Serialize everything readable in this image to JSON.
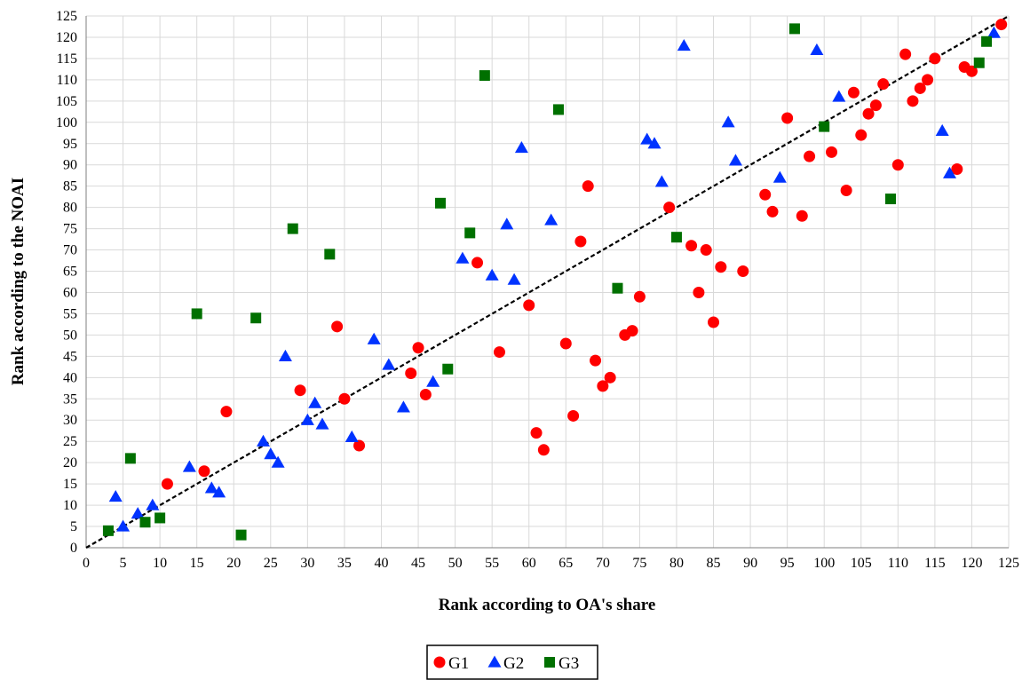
{
  "chart_data": {
    "type": "scatter",
    "title": "",
    "xlabel": "Rank according to OA's share",
    "ylabel": "Rank according to the NOAI",
    "xlim": [
      0,
      125
    ],
    "ylim": [
      0,
      125
    ],
    "xticks": [
      0,
      5,
      10,
      15,
      20,
      25,
      30,
      35,
      40,
      45,
      50,
      55,
      60,
      65,
      70,
      75,
      80,
      85,
      90,
      95,
      100,
      105,
      110,
      115,
      120,
      125
    ],
    "yticks": [
      0,
      5,
      10,
      15,
      20,
      25,
      30,
      35,
      40,
      45,
      50,
      55,
      60,
      65,
      70,
      75,
      80,
      85,
      90,
      95,
      100,
      105,
      110,
      115,
      120,
      125
    ],
    "grid": true,
    "legend_position": "bottom-center",
    "reference_line": {
      "style": "dashed",
      "from": [
        0,
        0
      ],
      "to": [
        125,
        125
      ],
      "color": "#000000"
    },
    "series": [
      {
        "name": "G1",
        "marker": "circle",
        "color": "#ff0000",
        "points": [
          [
            11,
            15
          ],
          [
            16,
            18
          ],
          [
            19,
            32
          ],
          [
            29,
            37
          ],
          [
            34,
            52
          ],
          [
            35,
            35
          ],
          [
            37,
            24
          ],
          [
            44,
            41
          ],
          [
            45,
            47
          ],
          [
            46,
            36
          ],
          [
            53,
            67
          ],
          [
            56,
            46
          ],
          [
            60,
            57
          ],
          [
            61,
            27
          ],
          [
            62,
            23
          ],
          [
            65,
            48
          ],
          [
            66,
            31
          ],
          [
            67,
            72
          ],
          [
            68,
            85
          ],
          [
            69,
            44
          ],
          [
            70,
            38
          ],
          [
            71,
            40
          ],
          [
            73,
            50
          ],
          [
            74,
            51
          ],
          [
            75,
            59
          ],
          [
            79,
            80
          ],
          [
            82,
            71
          ],
          [
            83,
            60
          ],
          [
            84,
            70
          ],
          [
            85,
            53
          ],
          [
            86,
            66
          ],
          [
            89,
            65
          ],
          [
            92,
            83
          ],
          [
            93,
            79
          ],
          [
            95,
            101
          ],
          [
            97,
            78
          ],
          [
            98,
            92
          ],
          [
            101,
            93
          ],
          [
            103,
            84
          ],
          [
            104,
            107
          ],
          [
            105,
            97
          ],
          [
            106,
            102
          ],
          [
            107,
            104
          ],
          [
            108,
            109
          ],
          [
            110,
            90
          ],
          [
            111,
            116
          ],
          [
            112,
            105
          ],
          [
            113,
            108
          ],
          [
            114,
            110
          ],
          [
            115,
            115
          ],
          [
            118,
            89
          ],
          [
            119,
            113
          ],
          [
            120,
            112
          ],
          [
            124,
            123
          ]
        ]
      },
      {
        "name": "G2",
        "marker": "triangle",
        "color": "#0033ff",
        "points": [
          [
            4,
            12
          ],
          [
            5,
            5
          ],
          [
            7,
            8
          ],
          [
            9,
            10
          ],
          [
            14,
            19
          ],
          [
            17,
            14
          ],
          [
            18,
            13
          ],
          [
            24,
            25
          ],
          [
            25,
            22
          ],
          [
            26,
            20
          ],
          [
            27,
            45
          ],
          [
            30,
            30
          ],
          [
            31,
            34
          ],
          [
            32,
            29
          ],
          [
            36,
            26
          ],
          [
            39,
            49
          ],
          [
            41,
            43
          ],
          [
            43,
            33
          ],
          [
            47,
            39
          ],
          [
            51,
            68
          ],
          [
            55,
            64
          ],
          [
            57,
            76
          ],
          [
            58,
            63
          ],
          [
            59,
            94
          ],
          [
            63,
            77
          ],
          [
            76,
            96
          ],
          [
            77,
            95
          ],
          [
            78,
            86
          ],
          [
            81,
            118
          ],
          [
            87,
            100
          ],
          [
            88,
            91
          ],
          [
            94,
            87
          ],
          [
            99,
            117
          ],
          [
            102,
            106
          ],
          [
            116,
            98
          ],
          [
            117,
            88
          ],
          [
            123,
            121
          ]
        ]
      },
      {
        "name": "G3",
        "marker": "square",
        "color": "#007000",
        "points": [
          [
            3,
            4
          ],
          [
            6,
            21
          ],
          [
            8,
            6
          ],
          [
            10,
            7
          ],
          [
            15,
            55
          ],
          [
            21,
            3
          ],
          [
            23,
            54
          ],
          [
            28,
            75
          ],
          [
            33,
            69
          ],
          [
            48,
            81
          ],
          [
            49,
            42
          ],
          [
            52,
            74
          ],
          [
            54,
            111
          ],
          [
            64,
            103
          ],
          [
            72,
            61
          ],
          [
            80,
            73
          ],
          [
            96,
            122
          ],
          [
            100,
            99
          ],
          [
            109,
            82
          ],
          [
            121,
            114
          ],
          [
            122,
            119
          ]
        ]
      }
    ]
  }
}
